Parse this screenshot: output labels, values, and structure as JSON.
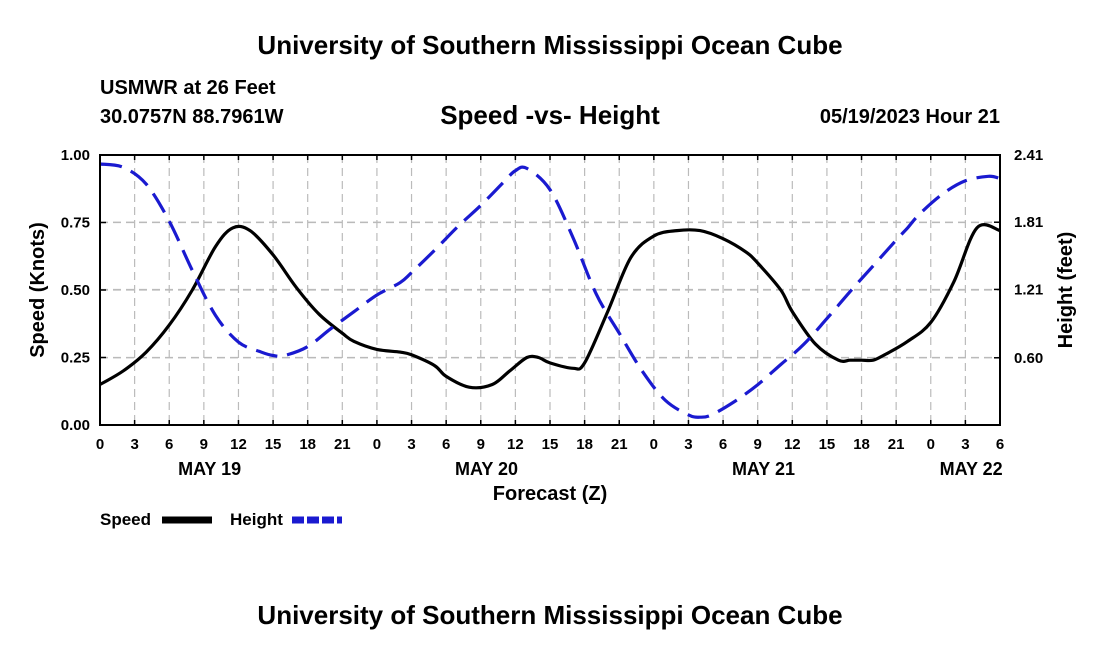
{
  "header": {
    "title": "University of Southern Mississippi Ocean Cube",
    "station": "USMWR at 26 Feet",
    "coords": "30.0757N  88.7961W",
    "subtitle": "Speed -vs- Height",
    "datetime": "05/19/2023 Hour 21"
  },
  "footer": {
    "title": "University of Southern Mississippi Ocean Cube"
  },
  "colors": {
    "speed": "#000000",
    "height": "#1a1ad0",
    "grid": "#bbbbbb"
  },
  "chart_data": {
    "type": "line",
    "title": "Speed -vs- Height",
    "xlabel": "Forecast (Z)",
    "ylabel": "Speed (Knots)",
    "y2label": "Height (feet)",
    "x_unit": "hours from 05/19 00Z",
    "xlim": [
      0,
      78
    ],
    "ylim": [
      0,
      1.0
    ],
    "y2lim": [
      0,
      2.41
    ],
    "x_tick_labels": [
      "0",
      "3",
      "6",
      "9",
      "12",
      "15",
      "18",
      "21",
      "0",
      "3",
      "6",
      "9",
      "12",
      "15",
      "18",
      "21",
      "0",
      "3",
      "6",
      "9",
      "12",
      "15",
      "18",
      "21",
      "0",
      "3",
      "6"
    ],
    "y_ticks": [
      "0.00",
      "0.25",
      "0.50",
      "0.75",
      "1.00"
    ],
    "y2_ticks": [
      "0.60",
      "1.21",
      "1.81",
      "2.41"
    ],
    "y2_tick_values": [
      0.6,
      1.21,
      1.81,
      2.41
    ],
    "date_labels": [
      {
        "hour": 9.5,
        "label": "MAY 19"
      },
      {
        "hour": 33.5,
        "label": "MAY 20"
      },
      {
        "hour": 57.5,
        "label": "MAY 21"
      },
      {
        "hour": 75.5,
        "label": "MAY 22"
      }
    ],
    "legend": [
      {
        "name": "Speed",
        "style": "solid"
      },
      {
        "name": "Height",
        "style": "dashed"
      }
    ],
    "series": [
      {
        "name": "Speed",
        "axis": "left",
        "units": "knots",
        "x": [
          0,
          2,
          4,
          6,
          8,
          10,
          11.5,
          13,
          15,
          17,
          19,
          21,
          22,
          24,
          26,
          27,
          29,
          30,
          32,
          34,
          35.5,
          37,
          38,
          39,
          41,
          42,
          44,
          46,
          48,
          50,
          52,
          54,
          56,
          57,
          59,
          60,
          62,
          64,
          65,
          66,
          67,
          68,
          70,
          72,
          74,
          76,
          78
        ],
        "y": [
          0.15,
          0.2,
          0.27,
          0.37,
          0.5,
          0.66,
          0.73,
          0.72,
          0.63,
          0.51,
          0.41,
          0.34,
          0.31,
          0.28,
          0.27,
          0.26,
          0.22,
          0.18,
          0.14,
          0.15,
          0.2,
          0.25,
          0.25,
          0.23,
          0.21,
          0.23,
          0.42,
          0.62,
          0.7,
          0.72,
          0.72,
          0.69,
          0.64,
          0.6,
          0.5,
          0.42,
          0.3,
          0.24,
          0.24,
          0.24,
          0.24,
          0.26,
          0.31,
          0.38,
          0.53,
          0.73,
          0.72
        ]
      },
      {
        "name": "Height",
        "axis": "right",
        "units": "feet",
        "x": [
          0,
          2,
          4,
          6,
          8,
          10,
          12,
          14,
          15,
          16,
          18,
          20,
          22,
          24,
          26,
          27,
          29,
          31,
          33,
          35,
          36,
          37,
          39,
          41,
          43,
          45,
          47,
          49,
          51,
          52,
          53,
          55,
          57,
          59,
          61,
          63,
          65,
          67,
          69,
          70,
          71,
          73,
          75,
          77,
          78
        ],
        "y": [
          2.33,
          2.3,
          2.15,
          1.82,
          1.38,
          0.98,
          0.74,
          0.65,
          0.62,
          0.62,
          0.7,
          0.86,
          1.01,
          1.16,
          1.27,
          1.36,
          1.56,
          1.77,
          1.96,
          2.17,
          2.27,
          2.29,
          2.1,
          1.67,
          1.17,
          0.82,
          0.48,
          0.22,
          0.09,
          0.07,
          0.09,
          0.21,
          0.36,
          0.54,
          0.72,
          0.95,
          1.19,
          1.42,
          1.65,
          1.76,
          1.88,
          2.06,
          2.18,
          2.22,
          2.2
        ]
      }
    ]
  }
}
